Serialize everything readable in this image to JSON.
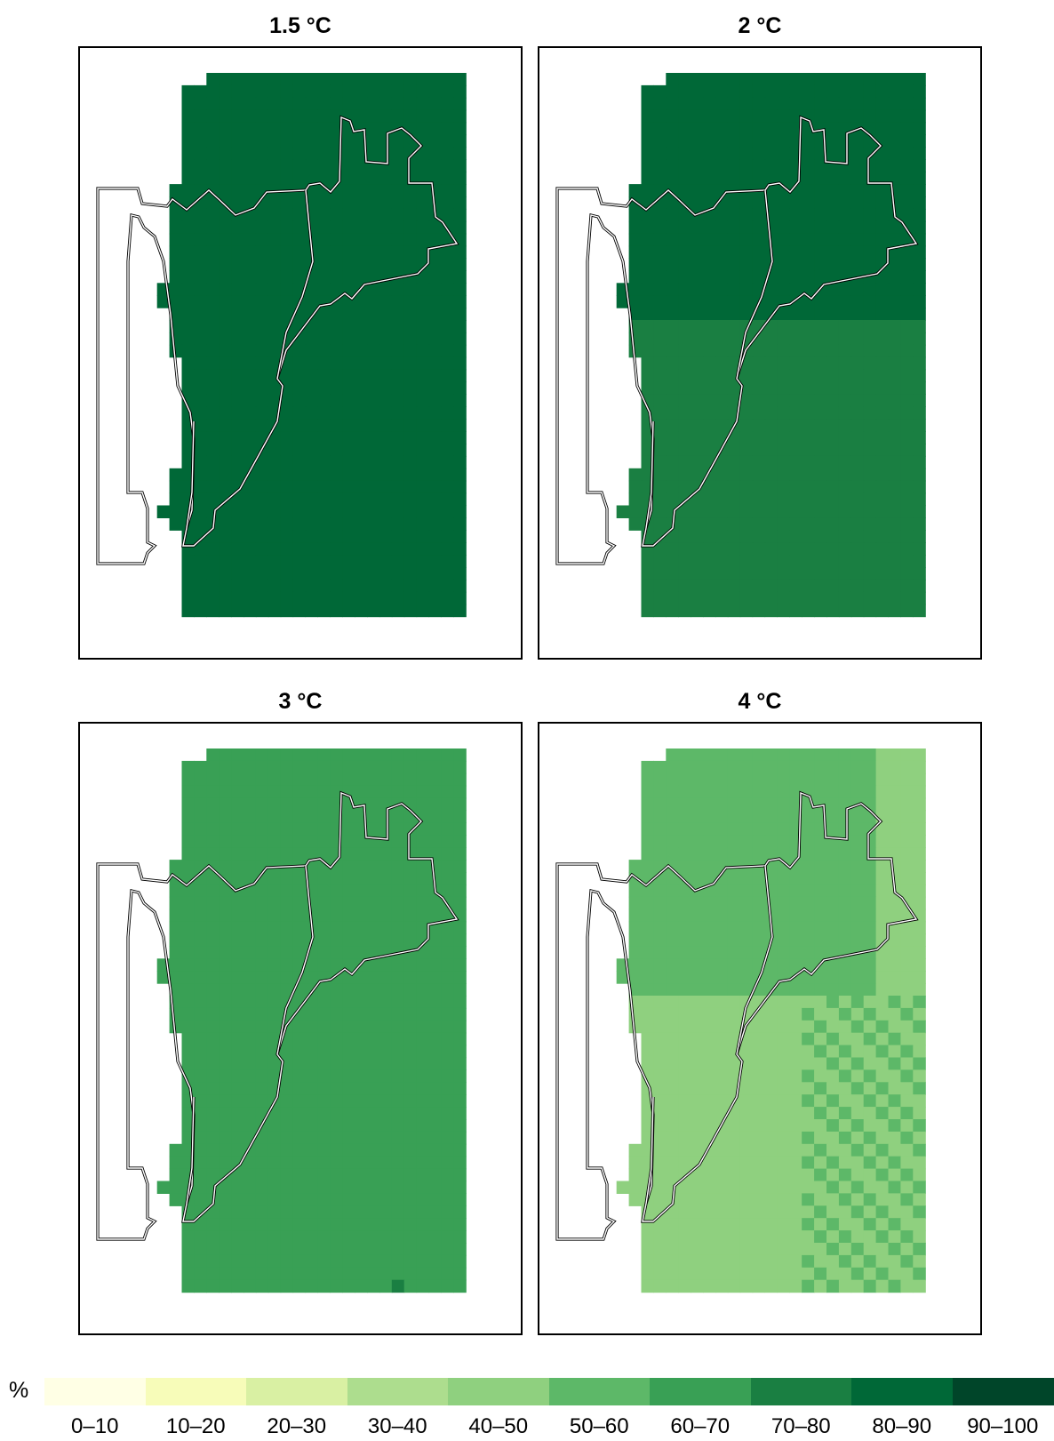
{
  "panels": [
    {
      "title": "1.5 °C",
      "base_color": "#006837",
      "patches": []
    },
    {
      "title": "2 °C",
      "base_color": "#1a7f42",
      "patches": [
        {
          "color": "#006837",
          "cells": "northern-block"
        }
      ]
    },
    {
      "title": "3 °C",
      "base_color": "#39a055",
      "patches": [
        {
          "color": "#1a7f42",
          "cells": "sparse"
        }
      ]
    },
    {
      "title": "4 °C",
      "base_color": "#8fd07f",
      "patches": [
        {
          "color": "#5db868",
          "cells": "mixed"
        }
      ]
    }
  ],
  "legend": {
    "unit": "%",
    "classes": [
      {
        "label": "0–10",
        "color": "#ffffe5"
      },
      {
        "label": "10–20",
        "color": "#f7fcb9"
      },
      {
        "label": "20–30",
        "color": "#d9f0a3"
      },
      {
        "label": "30–40",
        "color": "#addd8e"
      },
      {
        "label": "40–50",
        "color": "#8fd07f"
      },
      {
        "label": "50–60",
        "color": "#5db868"
      },
      {
        "label": "60–70",
        "color": "#39a055"
      },
      {
        "label": "70–80",
        "color": "#1a7f42"
      },
      {
        "label": "80–90",
        "color": "#006837"
      },
      {
        "label": "90–100",
        "color": "#004529"
      }
    ]
  }
}
